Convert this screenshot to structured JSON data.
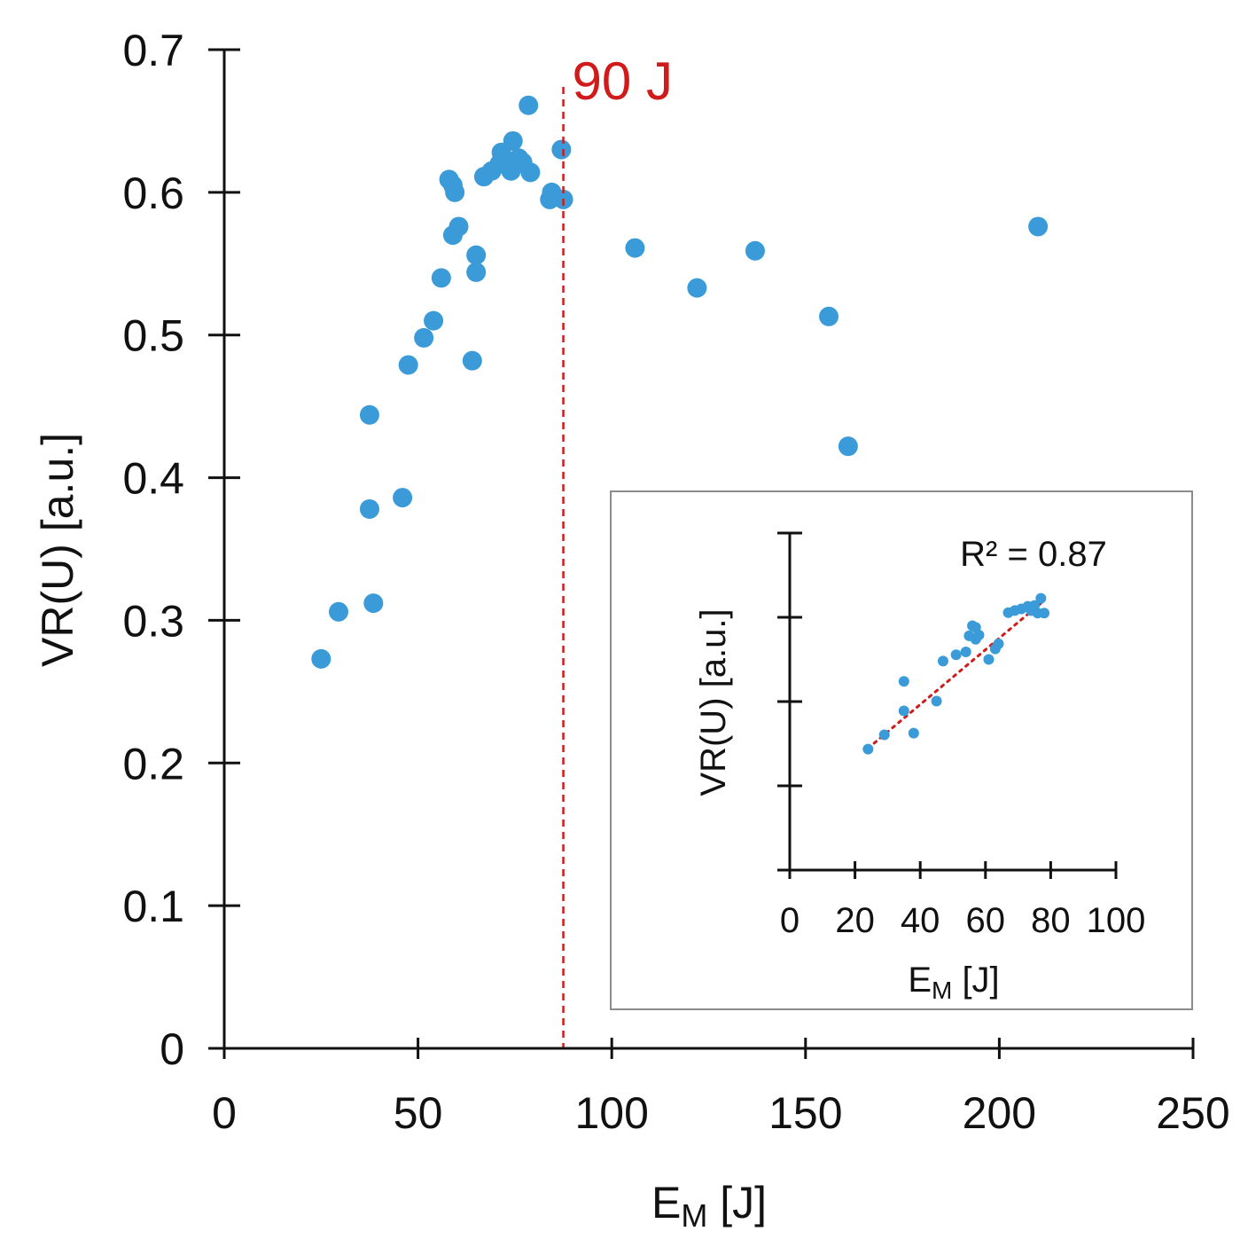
{
  "colors": {
    "marker": "#3a9bd8",
    "threshold": "#d11a1a",
    "trendline": "#d11a1a",
    "axis": "#111111",
    "inset_border": "#8c8c8c"
  },
  "chart_data": [
    {
      "type": "scatter",
      "title": "",
      "xlabel_main": "E",
      "xlabel_sub": "M",
      "xlabel_unit": " [J]",
      "ylabel": "VR(U) [a.u.]",
      "xlim": [
        0,
        250
      ],
      "ylim": [
        0,
        0.7
      ],
      "x_ticks": [
        0,
        50,
        100,
        150,
        200,
        250
      ],
      "x_tick_labels": [
        "0",
        "50",
        "100",
        "150",
        "200",
        "250"
      ],
      "y_ticks": [
        0,
        0.1,
        0.2,
        0.3,
        0.4,
        0.5,
        0.6,
        0.7
      ],
      "y_tick_labels": [
        "0",
        "0.1",
        "0.2",
        "0.3",
        "0.4",
        "0.5",
        "0.6",
        "0.7"
      ],
      "grid": false,
      "threshold": {
        "x": 87.5,
        "label": "90 J"
      },
      "points": [
        [
          25,
          0.273
        ],
        [
          29.5,
          0.306
        ],
        [
          37.5,
          0.378
        ],
        [
          37.5,
          0.444
        ],
        [
          38.5,
          0.312
        ],
        [
          46,
          0.386
        ],
        [
          47.5,
          0.479
        ],
        [
          51.5,
          0.498
        ],
        [
          54,
          0.51
        ],
        [
          56,
          0.54
        ],
        [
          58,
          0.609
        ],
        [
          59,
          0.605
        ],
        [
          59.5,
          0.6
        ],
        [
          59,
          0.57
        ],
        [
          60.5,
          0.576
        ],
        [
          64,
          0.482
        ],
        [
          65,
          0.556
        ],
        [
          65,
          0.544
        ],
        [
          67,
          0.611
        ],
        [
          69,
          0.615
        ],
        [
          71,
          0.62
        ],
        [
          71.5,
          0.628
        ],
        [
          73,
          0.622
        ],
        [
          74,
          0.615
        ],
        [
          74.5,
          0.636
        ],
        [
          76,
          0.624
        ],
        [
          77,
          0.621
        ],
        [
          78.5,
          0.661
        ],
        [
          79,
          0.614
        ],
        [
          84,
          0.595
        ],
        [
          84.5,
          0.6
        ],
        [
          87,
          0.63
        ],
        [
          87.5,
          0.595
        ],
        [
          106,
          0.561
        ],
        [
          122,
          0.533
        ],
        [
          137,
          0.559
        ],
        [
          156,
          0.513
        ],
        [
          161,
          0.422
        ],
        [
          210,
          0.576
        ]
      ]
    },
    {
      "type": "scatter",
      "title": "",
      "xlabel_main": "E",
      "xlabel_sub": "M",
      "xlabel_unit": " [J]",
      "ylabel": "VR(U) [a.u.]",
      "xlim": [
        0,
        100
      ],
      "ylim": [
        0,
        0.8
      ],
      "x_ticks": [
        0,
        20,
        40,
        60,
        80,
        100
      ],
      "x_tick_labels": [
        "0",
        "20",
        "40",
        "60",
        "80",
        "100"
      ],
      "y_ticks": [
        0,
        0.2,
        0.4,
        0.6,
        0.8
      ],
      "y_tick_labels": [],
      "annotation": "R² = 0.87",
      "trendline": {
        "from": [
          24,
          0.289
        ],
        "to": [
          78,
          0.64
        ]
      },
      "points": [
        [
          24,
          0.287
        ],
        [
          29,
          0.321
        ],
        [
          35,
          0.378
        ],
        [
          35,
          0.448
        ],
        [
          38,
          0.325
        ],
        [
          45,
          0.401
        ],
        [
          47,
          0.496
        ],
        [
          51,
          0.511
        ],
        [
          54,
          0.518
        ],
        [
          55,
          0.556
        ],
        [
          56,
          0.58
        ],
        [
          57,
          0.576
        ],
        [
          57,
          0.548
        ],
        [
          58,
          0.558
        ],
        [
          61,
          0.5
        ],
        [
          63,
          0.525
        ],
        [
          64,
          0.537
        ],
        [
          67,
          0.611
        ],
        [
          69,
          0.616
        ],
        [
          71,
          0.62
        ],
        [
          73,
          0.626
        ],
        [
          74,
          0.616
        ],
        [
          75,
          0.628
        ],
        [
          76,
          0.61
        ],
        [
          77,
          0.645
        ],
        [
          78,
          0.61
        ]
      ]
    }
  ]
}
